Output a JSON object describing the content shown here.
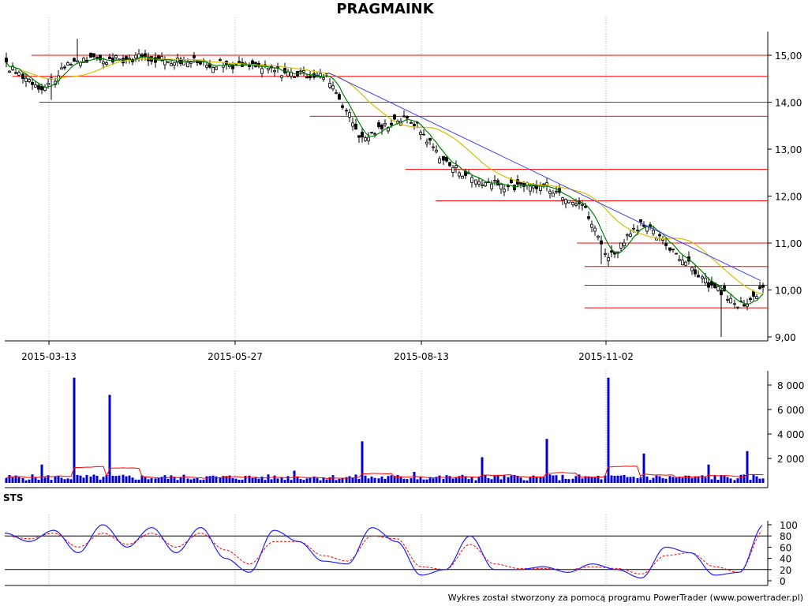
{
  "title": "PRAGMAINK",
  "indicator_label": "STS",
  "footer": "Wykres został stworzony za pomocą programu PowerTrader (www.powertrader.pl)",
  "colors": {
    "support_resistance": "#ff0000",
    "trendline": "#4040ff",
    "ma_short": "#008000",
    "ma_long": "#d4c000",
    "volume_bar": "#0000cc",
    "volume_ma": "#ff0000",
    "sts_k": "#2020ff",
    "sts_d": "#ff0000",
    "grid": "#b0b0b0"
  },
  "chart_data": [
    {
      "type": "candlestick",
      "title": "PRAGMAINK",
      "x_tick_labels": [
        "2015-03-13",
        "2015-05-27",
        "2015-08-13",
        "2015-11-02"
      ],
      "y_tick_labels": [
        "15,00",
        "14,00",
        "13,00",
        "12,00",
        "11,00",
        "10,00",
        "9,00"
      ],
      "ylim": [
        9.0,
        15.5
      ],
      "grid": "vertical",
      "horizontal_levels": [
        15.0,
        14.55,
        14.0,
        13.7,
        12.57,
        11.9,
        11.0,
        10.5,
        10.1,
        9.62
      ],
      "trendline": {
        "from": [
          "2015-07-09",
          14.63
        ],
        "to": [
          "2016-01-04",
          10.2
        ]
      },
      "series": [
        {
          "name": "close",
          "x": [
            "2015-02-25",
            "2015-03-13",
            "2015-03-26",
            "2015-04-10",
            "2015-04-23",
            "2015-05-07",
            "2015-05-27",
            "2015-06-10",
            "2015-06-25",
            "2015-07-09",
            "2015-07-23",
            "2015-08-06",
            "2015-08-13",
            "2015-08-27",
            "2015-09-10",
            "2015-09-24",
            "2015-10-08",
            "2015-10-22",
            "2015-11-02",
            "2015-11-16",
            "2015-11-30",
            "2015-12-14",
            "2015-12-29",
            "2016-01-04"
          ],
          "values": [
            14.8,
            14.3,
            14.9,
            14.9,
            14.95,
            14.9,
            14.8,
            14.75,
            14.6,
            14.55,
            13.2,
            13.65,
            13.6,
            12.7,
            12.3,
            12.2,
            12.2,
            11.85,
            10.7,
            11.4,
            10.8,
            10.1,
            9.6,
            10.05
          ]
        }
      ]
    },
    {
      "type": "bar",
      "y_tick_labels": [
        "8 000",
        "6 000",
        "4 000",
        "2 000"
      ],
      "ylim": [
        0,
        9000
      ],
      "series": [
        {
          "name": "volume",
          "x": [
            "2015-03-13",
            "2015-03-26",
            "2015-04-10",
            "2015-06-25",
            "2015-07-23",
            "2015-08-13",
            "2015-09-10",
            "2015-10-08",
            "2015-11-02",
            "2015-11-16",
            "2015-12-14",
            "2015-12-29"
          ],
          "values": [
            1500,
            8600,
            7200,
            1000,
            3400,
            900,
            2100,
            3600,
            8600,
            2400,
            1500,
            2600
          ]
        }
      ]
    },
    {
      "type": "line",
      "title": "STS",
      "y_tick_labels": [
        "100",
        "80",
        "60",
        "40",
        "20",
        "0"
      ],
      "ylim": [
        0,
        100
      ],
      "reference_levels": [
        80,
        20
      ],
      "series": [
        {
          "name": "%K",
          "values": [
            85,
            70,
            90,
            50,
            100,
            60,
            95,
            50,
            95,
            40,
            15,
            90,
            70,
            35,
            30,
            95,
            70,
            10,
            20,
            80,
            20,
            20,
            25,
            15,
            30,
            20,
            5,
            60,
            50,
            10,
            15,
            100
          ]
        },
        {
          "name": "%D",
          "values": [
            80,
            75,
            85,
            60,
            85,
            65,
            85,
            60,
            85,
            55,
            30,
            70,
            70,
            45,
            35,
            80,
            75,
            25,
            20,
            65,
            30,
            22,
            22,
            20,
            25,
            22,
            12,
            45,
            50,
            25,
            15,
            90
          ]
        }
      ]
    }
  ]
}
